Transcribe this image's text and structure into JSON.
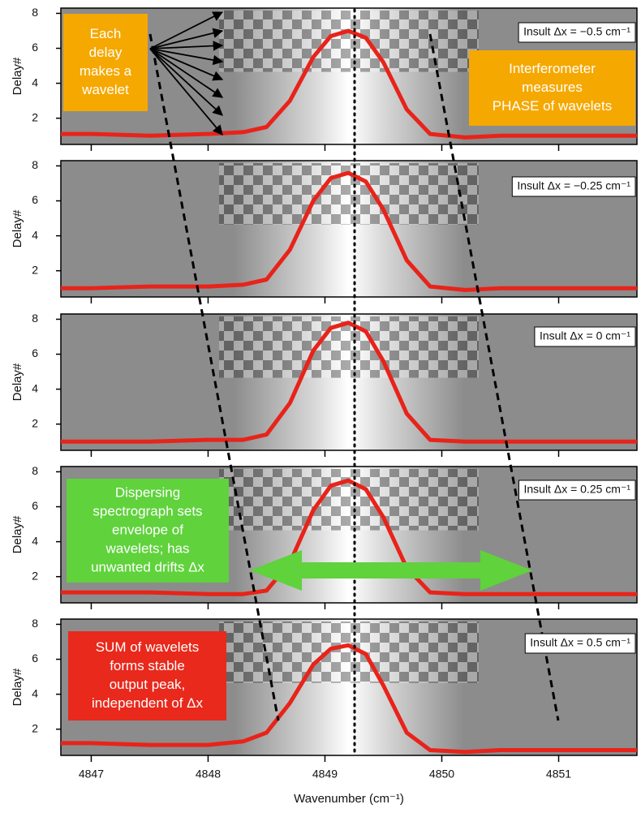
{
  "chart_data": [
    {
      "type": "line",
      "label": "Insult Δx = −0.5 cm⁻¹",
      "ylabel": "Delay#",
      "ylim": [
        0.5,
        8.3
      ],
      "yticks": [
        2,
        4,
        6,
        8
      ],
      "xlim": [
        4846.74,
        4851.67
      ],
      "color": "#e8231a",
      "x": [
        4846.74,
        4847,
        4847.5,
        4848,
        4848.3,
        4848.5,
        4848.7,
        4848.9,
        4849.05,
        4849.2,
        4849.35,
        4849.5,
        4849.7,
        4849.9,
        4850.2,
        4850.5,
        4851,
        4851.4,
        4851.67
      ],
      "values": [
        1.1,
        1.1,
        1.0,
        1.1,
        1.2,
        1.5,
        3.0,
        5.5,
        6.7,
        7.0,
        6.6,
        5.2,
        2.5,
        1.1,
        0.9,
        1.0,
        1.0,
        1.0,
        1.0
      ],
      "annotations": [
        {
          "lines": [
            "Each",
            "delay",
            "makes a",
            "wavelet"
          ],
          "color": "#f5a800"
        },
        {
          "lines": [
            "Interferometer",
            "measures",
            "PHASE of wavelets"
          ],
          "color": "#f5a800"
        }
      ]
    },
    {
      "type": "line",
      "label": "Insult Δx = −0.25 cm⁻¹",
      "ylabel": "Delay#",
      "ylim": [
        0.5,
        8.3
      ],
      "yticks": [
        2,
        4,
        6,
        8
      ],
      "xlim": [
        4846.74,
        4851.67
      ],
      "color": "#e8231a",
      "x": [
        4846.74,
        4847,
        4847.5,
        4848,
        4848.3,
        4848.5,
        4848.7,
        4848.9,
        4849.05,
        4849.2,
        4849.35,
        4849.5,
        4849.7,
        4849.9,
        4850.2,
        4850.5,
        4851,
        4851.4,
        4851.67
      ],
      "values": [
        1.0,
        1.0,
        1.1,
        1.1,
        1.2,
        1.5,
        3.2,
        6.0,
        7.3,
        7.6,
        7.1,
        5.5,
        2.6,
        1.1,
        0.9,
        1.0,
        1.0,
        1.0,
        1.0
      ],
      "annotations": []
    },
    {
      "type": "line",
      "label": "Insult Δx = 0 cm⁻¹",
      "ylabel": "Delay#",
      "ylim": [
        0.5,
        8.3
      ],
      "yticks": [
        2,
        4,
        6,
        8
      ],
      "xlim": [
        4846.74,
        4851.67
      ],
      "color": "#e8231a",
      "x": [
        4846.74,
        4847,
        4847.5,
        4848,
        4848.3,
        4848.5,
        4848.7,
        4848.9,
        4849.05,
        4849.2,
        4849.35,
        4849.5,
        4849.7,
        4849.9,
        4850.2,
        4850.5,
        4851,
        4851.4,
        4851.67
      ],
      "values": [
        1.0,
        1.0,
        1.0,
        1.1,
        1.1,
        1.4,
        3.2,
        6.2,
        7.5,
        7.8,
        7.3,
        5.6,
        2.6,
        1.1,
        1.0,
        1.0,
        1.0,
        1.0,
        1.0
      ],
      "annotations": []
    },
    {
      "type": "line",
      "label": "Insult Δx = 0.25 cm⁻¹",
      "ylabel": "Delay#",
      "ylim": [
        0.5,
        8.3
      ],
      "yticks": [
        2,
        4,
        6,
        8
      ],
      "xlim": [
        4846.74,
        4851.67
      ],
      "color": "#e8231a",
      "x": [
        4846.74,
        4847,
        4847.5,
        4848,
        4848.3,
        4848.5,
        4848.7,
        4848.9,
        4849.05,
        4849.2,
        4849.35,
        4849.5,
        4849.7,
        4849.9,
        4850.2,
        4850.5,
        4851,
        4851.4,
        4851.67
      ],
      "values": [
        1.1,
        1.1,
        1.1,
        1.0,
        1.0,
        1.2,
        2.8,
        5.8,
        7.2,
        7.5,
        7.0,
        5.4,
        2.5,
        1.1,
        1.0,
        1.0,
        1.0,
        1.0,
        1.0
      ],
      "annotations": [
        {
          "lines": [
            "Dispersing",
            "spectrograph sets",
            "envelope of",
            "wavelets; has",
            "unwanted drifts Δx"
          ],
          "color": "#5fd23c"
        }
      ]
    },
    {
      "type": "line",
      "label": "Insult Δx = 0.5 cm⁻¹",
      "ylabel": "Delay#",
      "ylim": [
        0.5,
        8.3
      ],
      "yticks": [
        2,
        4,
        6,
        8
      ],
      "xlim": [
        4846.74,
        4851.67
      ],
      "color": "#e8231a",
      "x": [
        4846.74,
        4847,
        4847.5,
        4848,
        4848.3,
        4848.5,
        4848.7,
        4848.9,
        4849.05,
        4849.2,
        4849.35,
        4849.5,
        4849.7,
        4849.9,
        4850.2,
        4850.5,
        4851,
        4851.4,
        4851.67
      ],
      "values": [
        1.2,
        1.2,
        1.1,
        1.1,
        1.3,
        1.8,
        3.5,
        5.7,
        6.6,
        6.8,
        6.3,
        4.5,
        1.8,
        0.8,
        0.7,
        0.8,
        0.8,
        0.8,
        0.8
      ],
      "annotations": [
        {
          "lines": [
            "SUM of wavelets",
            "forms stable",
            "output peak,",
            "independent of Δx"
          ],
          "color": "#e8291c"
        }
      ],
      "xlabel": "Wavenumber (cm⁻¹)",
      "xticks": [
        4847,
        4848,
        4849,
        4850,
        4851
      ]
    }
  ]
}
